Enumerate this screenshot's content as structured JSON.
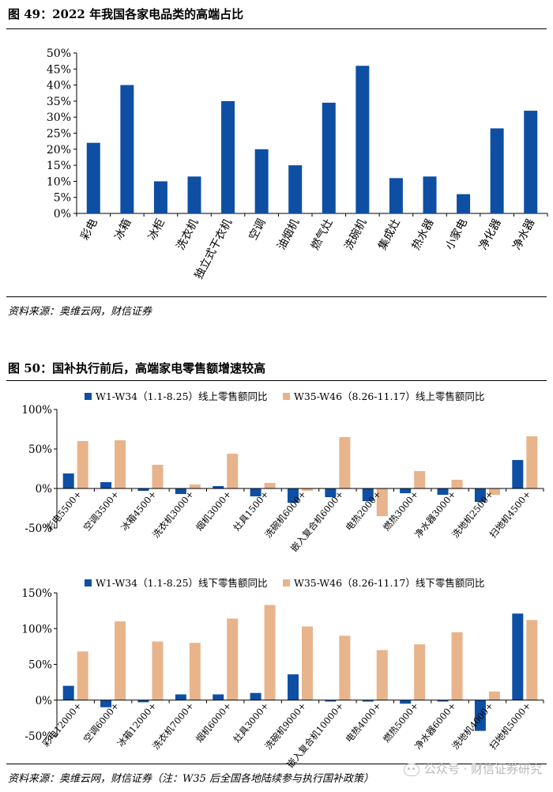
{
  "figure49": {
    "title": "图 49：2022 年我国各家电品类的高端占比",
    "source": "资料来源：奥维云网，财信证券",
    "chart_data": {
      "type": "bar",
      "categories": [
        "彩电",
        "冰箱",
        "冰柜",
        "洗衣机",
        "独立式干衣机",
        "空调",
        "油烟机",
        "燃气灶",
        "洗碗机",
        "集成灶",
        "热水器",
        "小家电",
        "净化器",
        "净水器"
      ],
      "values": [
        22,
        40,
        10,
        11.5,
        35,
        20,
        15,
        34.5,
        46,
        11,
        11.5,
        6,
        26.5,
        32
      ],
      "ylim": [
        0,
        50
      ],
      "yticks": [
        0,
        5,
        10,
        15,
        20,
        25,
        30,
        35,
        40,
        45,
        50
      ],
      "tick_format": "percent",
      "color": "#0e4fa3"
    }
  },
  "figure50": {
    "title": "图 50：国补执行前后，高端家电零售额增速较高",
    "source": "资料来源：奥维云网，财信证券（注：W35 后全国各地陆续参与执行国补政策）",
    "watermark": "公众号 · 财信证券研究",
    "chart_data": [
      {
        "type": "bar",
        "categories": [
          "彩电5500+",
          "空调3500+",
          "冰箱4500+",
          "洗衣机3000+",
          "烟机3000+",
          "灶具1500+",
          "洗碗机6000+",
          "嵌入复合机6000+",
          "电热2000+",
          "燃热3000+",
          "净水器3000+",
          "洗地机2500+",
          "扫地机4500+"
        ],
        "series": [
          {
            "name": "W1-W34（1.1-8.25）线上零售额同比",
            "color": "#0e4fa3",
            "values": [
              19,
              8,
              -3,
              -7,
              3,
              -10,
              -18,
              -11,
              -16,
              -6,
              -8,
              -17,
              36
            ]
          },
          {
            "name": "W35-W46（8.26-11.17）线上零售额同比",
            "color": "#e8b48c",
            "values": [
              60,
              61,
              30,
              5,
              44,
              7,
              -3,
              65,
              -35,
              22,
              11,
              -8,
              66
            ]
          }
        ],
        "ylim": [
          -50,
          100
        ],
        "yticks": [
          -50,
          0,
          50,
          100
        ],
        "tick_format": "percent"
      },
      {
        "type": "bar",
        "categories": [
          "彩电12000+",
          "空调6000+",
          "冰箱12000+",
          "洗衣机7000+",
          "烟机6000+",
          "灶具3000+",
          "洗碗机9000+",
          "嵌入复合机10000+",
          "电热4000+",
          "燃热5000+",
          "净水器6000+",
          "洗地机4000+",
          "扫地机5000+"
        ],
        "series": [
          {
            "name": "W1-W34（1.1-8.25）线下零售额同比",
            "color": "#0e4fa3",
            "values": [
              20,
              -10,
              -3,
              8,
              8,
              10,
              36,
              -2,
              -2,
              -5,
              -2,
              -43,
              121
            ]
          },
          {
            "name": "W35-W46（8.26-11.17）线下零售额同比",
            "color": "#e8b48c",
            "values": [
              68,
              110,
              82,
              80,
              114,
              133,
              103,
              90,
              70,
              78,
              95,
              12,
              112
            ]
          }
        ],
        "ylim": [
          -50,
          150
        ],
        "yticks": [
          -50,
          0,
          50,
          100,
          150
        ],
        "tick_format": "percent"
      }
    ]
  }
}
